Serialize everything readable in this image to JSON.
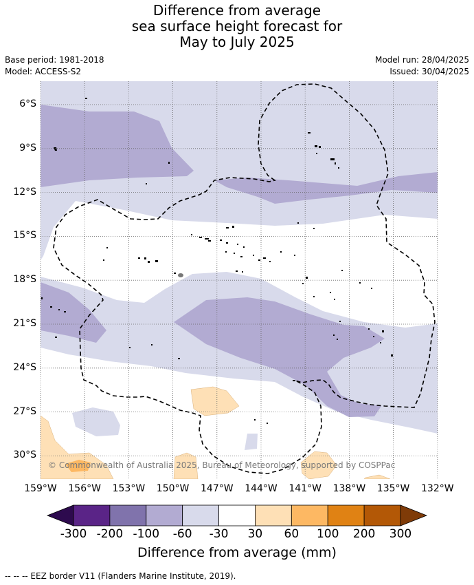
{
  "title": {
    "line1": "Difference from average",
    "line2": "sea surface height forecast for",
    "line3": "May to July 2025"
  },
  "meta": {
    "base_period": "Base period: 1981-2018",
    "model": "Model: ACCESS-S2",
    "model_run": "Model run: 28/04/2025",
    "issued": "Issued: 30/04/2025"
  },
  "map": {
    "lat_labels": [
      "6°S",
      "9°S",
      "12°S",
      "15°S",
      "18°S",
      "21°S",
      "24°S",
      "27°S",
      "30°S"
    ],
    "lon_labels": [
      "159°W",
      "156°W",
      "153°W",
      "150°W",
      "147°W",
      "144°W",
      "141°W",
      "138°W",
      "135°W",
      "132°W"
    ],
    "copyright": "© Commonwealth of Australia 2025, Bureau of Meteorology, supported by COSPPac",
    "ocean_color": "#ffffff",
    "gridlines": "dotted"
  },
  "colorbar": {
    "title": "Difference from average (mm)",
    "ticks": [
      "-300",
      "-200",
      "-100",
      "-60",
      "-30",
      "30",
      "60",
      "100",
      "200",
      "300"
    ],
    "colors": {
      "lt_neg300": "#2d0a4e",
      "neg300_neg200": "#5a2487",
      "neg200_neg100": "#8073ac",
      "neg100_neg60": "#b2abd2",
      "neg60_neg30": "#d8daeb",
      "neg30_30": "#ffffff",
      "p30_60": "#fee0b6",
      "p60_100": "#fdb863",
      "p100_200": "#e08214",
      "p200_300": "#b35806",
      "gt_300": "#7f3b08"
    }
  },
  "legend_note": "--  --  -- EEZ border V11 (Flanders Marine Institute, 2019)."
}
